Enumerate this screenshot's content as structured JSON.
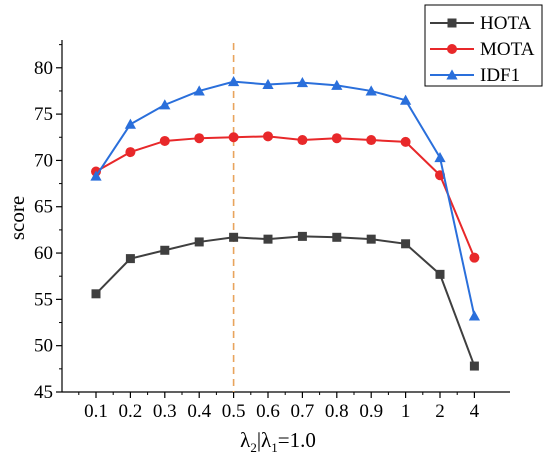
{
  "chart_data": {
    "type": "line",
    "categories": [
      "0.1",
      "0.2",
      "0.3",
      "0.4",
      "0.5",
      "0.6",
      "0.7",
      "0.8",
      "0.9",
      "1",
      "2",
      "4"
    ],
    "xlabel": {
      "main": "λ",
      "sub1": "2",
      "mid": "|λ",
      "sub2": "1",
      "tail": "=1.0"
    },
    "ylabel": "score",
    "ylim": [
      45,
      83
    ],
    "yticks": [
      "45",
      "50",
      "55",
      "60",
      "65",
      "70",
      "75",
      "80"
    ],
    "grid": false,
    "legend_position": "top-right",
    "reference_line": {
      "category": "0.5",
      "style": "dashed",
      "color": "#e8a45c"
    },
    "series": [
      {
        "name": "HOTA",
        "marker": "square",
        "color": "#3f3f3f",
        "values": [
          55.6,
          59.4,
          60.3,
          61.2,
          61.7,
          61.5,
          61.8,
          61.7,
          61.5,
          61.0,
          57.7,
          47.8
        ]
      },
      {
        "name": "MOTA",
        "marker": "circle",
        "color": "#e8282a",
        "values": [
          68.8,
          70.9,
          72.1,
          72.4,
          72.5,
          72.6,
          72.2,
          72.4,
          72.2,
          72.0,
          68.4,
          59.5
        ]
      },
      {
        "name": "IDF1",
        "marker": "triangle",
        "color": "#2a6fdb",
        "values": [
          68.3,
          73.9,
          76.0,
          77.5,
          78.5,
          78.2,
          78.4,
          78.1,
          77.5,
          76.5,
          70.3,
          53.2
        ]
      }
    ]
  }
}
